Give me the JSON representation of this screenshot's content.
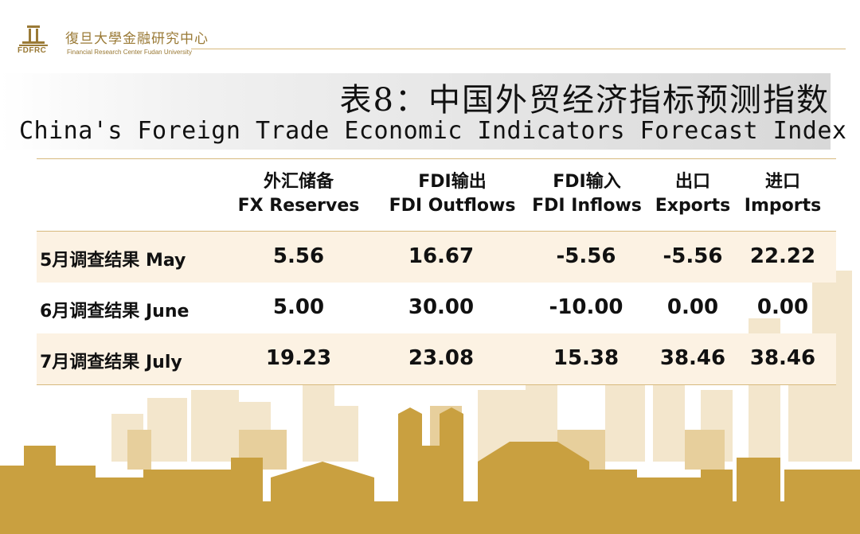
{
  "header": {
    "logo_abbr": "FDFRC",
    "org_cn": "復旦大學金融研究中心",
    "org_en": "Financial Research Center Fudan University"
  },
  "title": {
    "cn": "表8：中国外贸经济指标预测指数",
    "en": "China's Foreign Trade Economic Indicators Forecast Index"
  },
  "table": {
    "columns": [
      {
        "cn": "外汇储备",
        "en": "FX Reserves"
      },
      {
        "cn": "FDI输出",
        "en": "FDI Outflows"
      },
      {
        "cn": "FDI输入",
        "en": "FDI Inflows"
      },
      {
        "cn": "出口",
        "en": "Exports"
      },
      {
        "cn": "进口",
        "en": "Imports"
      }
    ],
    "rows": [
      {
        "label": "5月调查结果 May",
        "values": [
          "5.56",
          "16.67",
          "-5.56",
          "-5.56",
          "22.22"
        ]
      },
      {
        "label": "6月调查结果 June",
        "values": [
          "5.00",
          "30.00",
          "-10.00",
          "0.00",
          "0.00"
        ]
      },
      {
        "label": "7月调查结果 July",
        "values": [
          "19.23",
          "23.08",
          "15.38",
          "38.46",
          "38.46"
        ]
      }
    ]
  },
  "colors": {
    "gold": "#c9a040",
    "gold_light": "#e8d2a2",
    "row_shade": "#fcf2e3"
  }
}
